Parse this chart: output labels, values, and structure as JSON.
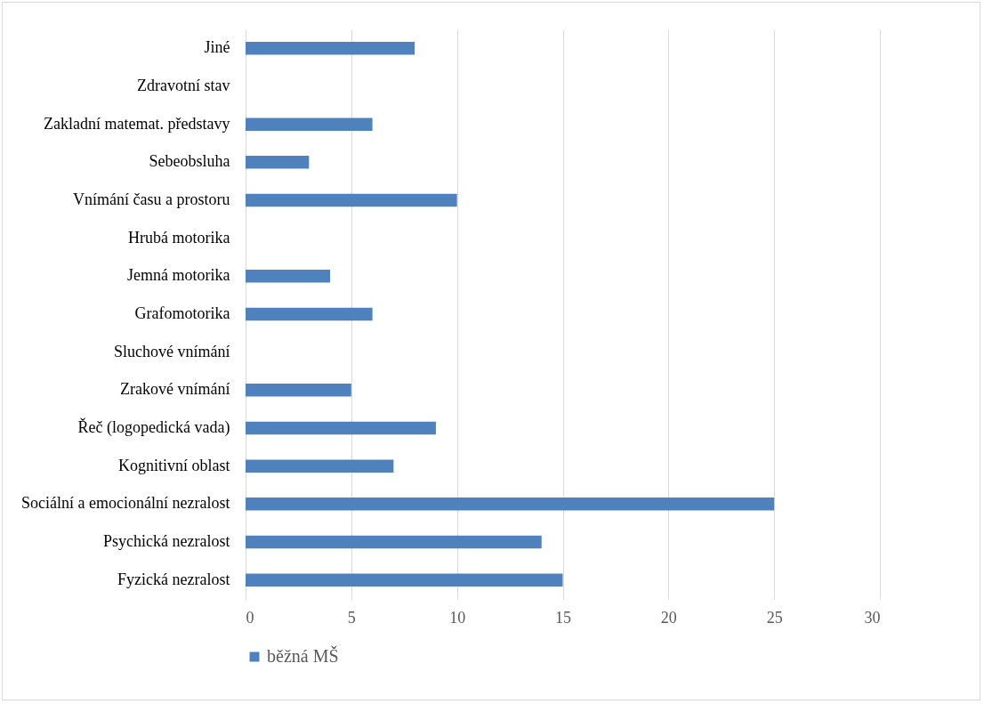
{
  "chart_data": {
    "type": "bar",
    "orientation": "horizontal",
    "categories": [
      "Jiné",
      "Zdravotní stav",
      "Zakladní matemat. představy",
      "Sebeobsluha",
      "Vnímání času a prostoru",
      "Hrubá motorika",
      "Jemná motorika",
      "Grafomotorika",
      "Sluchové vnímání",
      "Zrakové vnímání",
      "Řeč (logopedická vada)",
      "Kognitivní oblast",
      "Sociální a emocionální nezralost",
      "Psychická nezralost",
      "Fyzická nezralost"
    ],
    "series": [
      {
        "name": "běžná MŠ",
        "color": "#4f81bd",
        "values": [
          8,
          0,
          6,
          3,
          10,
          0,
          4,
          6,
          0,
          5,
          9,
          7,
          25,
          14,
          15
        ]
      }
    ],
    "xlim": [
      0,
      30
    ],
    "xticks": [
      0,
      5,
      10,
      15,
      20,
      25,
      30
    ],
    "grid": "x",
    "legend": "bottom"
  }
}
